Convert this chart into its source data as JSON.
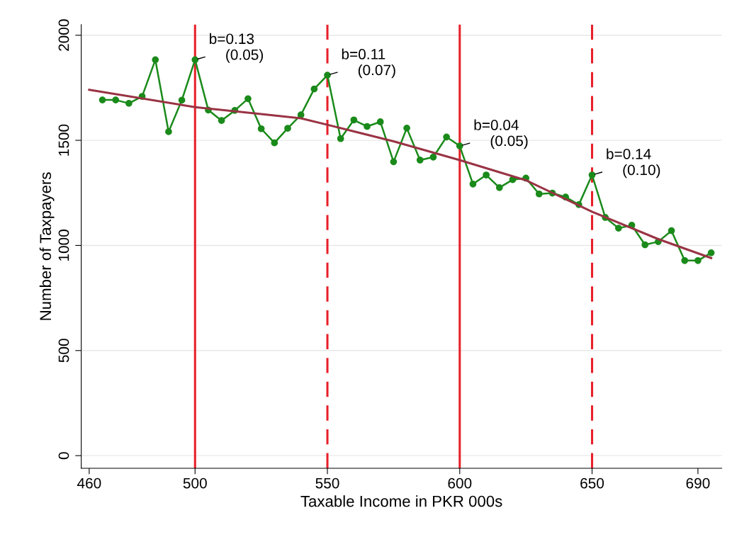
{
  "chart_data": {
    "type": "line",
    "xlabel": "Taxable Income in PKR 000s",
    "ylabel": "Number of Taxpayers",
    "x": [
      465,
      470,
      475,
      480,
      485,
      490,
      495,
      500,
      505,
      510,
      515,
      520,
      525,
      530,
      535,
      540,
      545,
      550,
      555,
      560,
      565,
      570,
      575,
      580,
      585,
      590,
      595,
      600,
      605,
      610,
      615,
      620,
      625,
      630,
      635,
      640,
      645,
      650,
      655,
      660,
      665,
      670,
      675,
      680,
      685,
      690,
      695
    ],
    "series": [
      {
        "color": "#1a8a1a",
        "marker": "circle",
        "values": [
          1692,
          1692,
          1676,
          1709,
          1883,
          1541,
          1691,
          1883,
          1644,
          1594,
          1642,
          1698,
          1555,
          1488,
          1557,
          1621,
          1744,
          1810,
          1508,
          1597,
          1566,
          1588,
          1398,
          1558,
          1406,
          1420,
          1516,
          1473,
          1292,
          1335,
          1275,
          1313,
          1320,
          1245,
          1249,
          1230,
          1194,
          1335,
          1133,
          1082,
          1096,
          1003,
          1018,
          1070,
          928,
          928,
          965
        ]
      },
      {
        "color": "#993344",
        "marker": "none",
        "x": [
          460,
          500,
          525,
          540,
          550,
          575,
          600,
          625,
          650,
          675,
          695
        ],
        "values": [
          1740,
          1658,
          1625,
          1605,
          1574,
          1495,
          1406,
          1310,
          1160,
          1030,
          940
        ]
      }
    ],
    "xlim": [
      457,
      699
    ],
    "xticks": [
      460,
      500,
      550,
      600,
      650,
      690
    ],
    "ylim": [
      -60,
      2050
    ],
    "yticks": [
      0,
      500,
      1000,
      1500,
      2000
    ],
    "grid": "y",
    "ref_lines": [
      {
        "axis": "x",
        "value": 500,
        "color": "#e8202a",
        "line_style": "solid"
      },
      {
        "axis": "x",
        "value": 550,
        "color": "#e8202a",
        "line_style": "dashed"
      },
      {
        "axis": "x",
        "value": 600,
        "color": "#e8202a",
        "line_style": "solid"
      },
      {
        "axis": "x",
        "value": 650,
        "color": "#e8202a",
        "line_style": "dashed"
      }
    ],
    "annotations": [
      {
        "text": "b=0.13\n    (0.05)",
        "x": 500,
        "y": 1883
      },
      {
        "text": "b=0.11\n    (0.07)",
        "x": 550,
        "y": 1810
      },
      {
        "text": "b=0.04\n    (0.05)",
        "x": 600,
        "y": 1473
      },
      {
        "text": "b=0.14\n    (0.10)",
        "x": 650,
        "y": 1335
      }
    ]
  }
}
